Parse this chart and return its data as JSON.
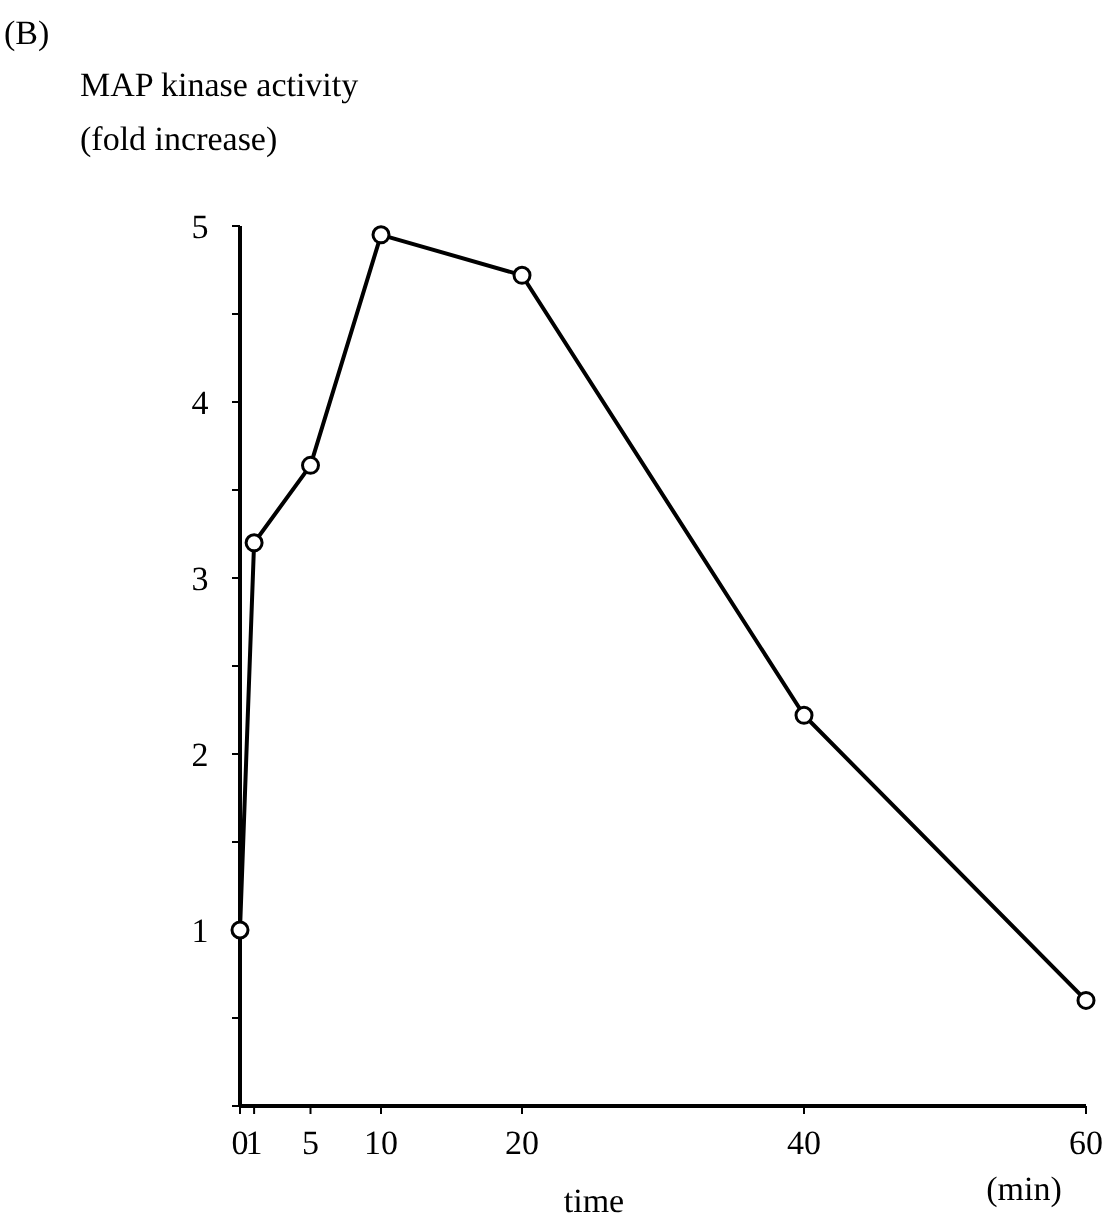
{
  "chart_data": {
    "type": "line",
    "title": "(B)",
    "ylabel": "MAP kinase activity (fold increase)",
    "xlabel": "time",
    "annotations": [
      "(min)"
    ],
    "x": [
      0,
      1,
      5,
      10,
      20,
      40,
      60
    ],
    "series": [
      {
        "color": "#000000",
        "values": [
          1,
          3.2,
          3.64,
          4.95,
          4.72,
          2.22,
          0.6
        ]
      }
    ],
    "xlim": [
      0,
      60
    ],
    "xticks": [
      0,
      1,
      5,
      10,
      20,
      40,
      60
    ],
    "ylim": [
      0,
      5
    ],
    "yticks": [
      {
        "value": 0,
        "label": null
      },
      {
        "value": 0.5,
        "label": null
      },
      1,
      {
        "value": 1.5,
        "label": null
      },
      2,
      {
        "value": 2.5,
        "label": null
      },
      3,
      {
        "value": 3.5,
        "label": null
      },
      4,
      {
        "value": 4.5,
        "label": null
      },
      5
    ],
    "marker": "circle",
    "line_style": "solid",
    "grid": false
  }
}
